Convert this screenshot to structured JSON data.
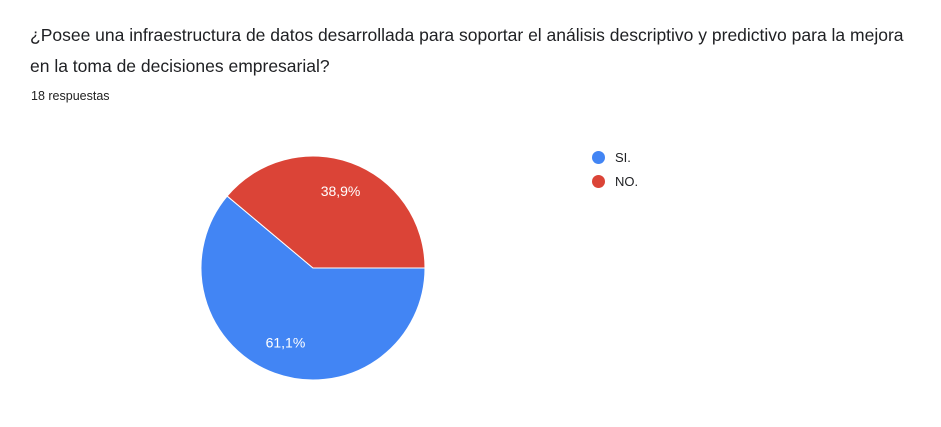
{
  "question": {
    "title": "¿Posee una infraestructura de datos desarrollada para soportar el análisis descriptivo y predictivo para la mejora en la toma de decisiones empresarial?",
    "responses_count": "18 respuestas"
  },
  "chart_data": {
    "type": "pie",
    "title": "¿Posee una infraestructura de datos desarrollada para soportar el análisis descriptivo y predictivo para la mejora en la toma de decisiones empresarial?",
    "subtitle": "18 respuestas",
    "labels": [
      "SI.",
      "NO."
    ],
    "values": [
      61.1,
      38.9
    ],
    "value_labels": [
      "61,1%",
      "38,9%"
    ],
    "colors": [
      "#4285f4",
      "#db4437"
    ],
    "slice_label_color": "#ffffff",
    "legend_position": "right",
    "start_angle_deg": 0,
    "direction": "clockwise",
    "total_responses": 18
  }
}
